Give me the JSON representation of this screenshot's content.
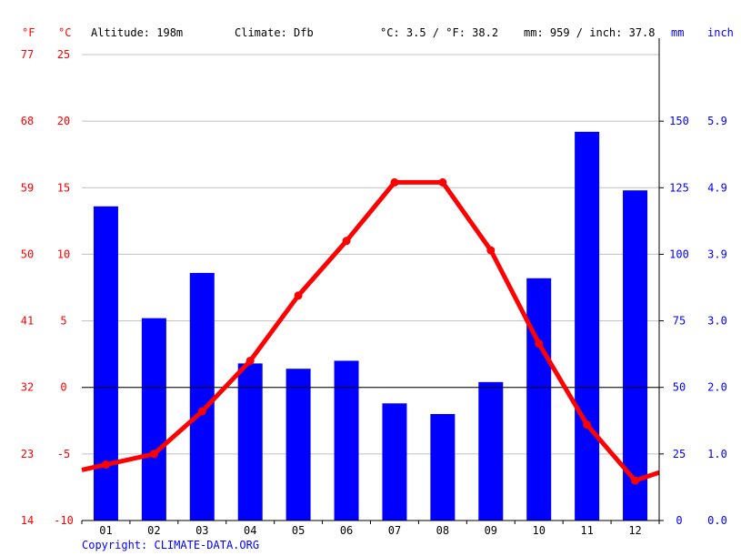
{
  "header": {
    "unit_f": "°F",
    "unit_c": "°C",
    "altitude": "Altitude: 198m",
    "climate": "Climate: Dfb",
    "temp_avg": "°C: 3.5 / °F: 38.2",
    "precip_total": "mm: 959 / inch: 37.8",
    "unit_mm": "mm",
    "unit_inch": "inch"
  },
  "footer": {
    "copyright": "Copyright: CLIMATE-DATA.ORG"
  },
  "colors": {
    "temperature": "#ff0000",
    "precipitation": "#0000ff",
    "grid": "#c0c0c0",
    "zero_line": "#000000"
  },
  "chart_data": {
    "type": "bar+line",
    "categories": [
      "01",
      "02",
      "03",
      "04",
      "05",
      "06",
      "07",
      "08",
      "09",
      "10",
      "11",
      "12"
    ],
    "series": [
      {
        "kind": "bar",
        "axis": "right",
        "values": [
          118,
          76,
          93,
          59,
          57,
          60,
          44,
          40,
          52,
          91,
          146,
          124
        ]
      },
      {
        "kind": "line",
        "axis": "left",
        "values": [
          -5.8,
          -5.0,
          -1.8,
          2.0,
          6.9,
          11.0,
          15.4,
          15.4,
          10.3,
          3.3,
          -2.8,
          -7.0
        ]
      }
    ],
    "left_axis_c": {
      "ylim": [
        -10,
        25
      ],
      "ticks": [
        "-10",
        "-5",
        "0",
        "5",
        "10",
        "15",
        "20",
        "25"
      ]
    },
    "left_axis_f": {
      "ticks": [
        "14",
        "23",
        "32",
        "41",
        "50",
        "59",
        "68",
        "77"
      ]
    },
    "right_axis_mm": {
      "ylim": [
        0,
        175
      ],
      "ticks": [
        "0",
        "25",
        "50",
        "75",
        "100",
        "125",
        "150"
      ]
    },
    "right_axis_inch": {
      "ticks": [
        "0.0",
        "1.0",
        "2.0",
        "3.0",
        "3.9",
        "4.9",
        "5.9"
      ]
    },
    "grid": true
  }
}
